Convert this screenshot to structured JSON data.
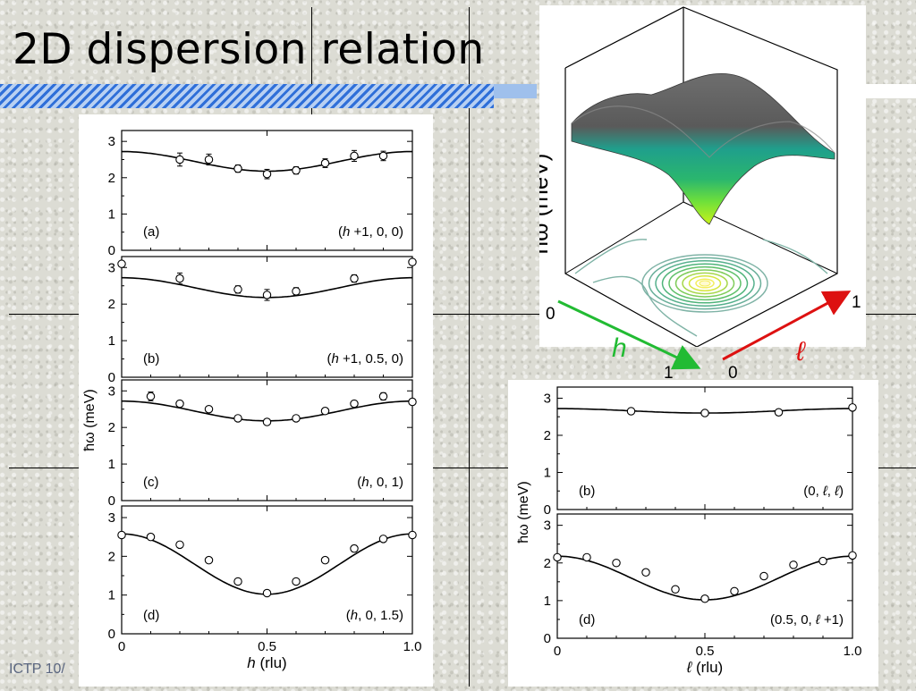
{
  "slide": {
    "title": "2D dispersion relation",
    "footer": "ICTP 10/"
  },
  "colors": {
    "title_bar": "#9fc0ec",
    "title_bar_stripe": "#2f6fd8",
    "h_arrow": "#22bb33",
    "l_arrow": "#dd1111",
    "fit_line": "#000000"
  },
  "surface": {
    "zlabel": "ħω (meV)",
    "h_label": "h",
    "l_label": "ℓ",
    "h_start": "0",
    "h_end": "1",
    "l_start": "0",
    "l_end": "1"
  },
  "chart_data": [
    {
      "type": "scatter",
      "panel": "(a)",
      "annotation": "(h +1, 0, 0)",
      "xlabel": "h (rlu)",
      "ylabel": "ħω  (meV)",
      "xlim": [
        0,
        1
      ],
      "ylim": [
        0,
        3.3
      ],
      "x_ticks": [
        "0",
        "0.5",
        "1.0"
      ],
      "y_ticks": [
        "0",
        "1",
        "2",
        "3"
      ],
      "fit": {
        "mean": 2.45,
        "amp": 0.27
      },
      "points": [
        {
          "x": 0.2,
          "y": 2.5,
          "err": 0.18
        },
        {
          "x": 0.3,
          "y": 2.5,
          "err": 0.15
        },
        {
          "x": 0.4,
          "y": 2.25,
          "err": 0.1
        },
        {
          "x": 0.5,
          "y": 2.1,
          "err": 0.13
        },
        {
          "x": 0.6,
          "y": 2.2,
          "err": 0.1
        },
        {
          "x": 0.7,
          "y": 2.4,
          "err": 0.12
        },
        {
          "x": 0.8,
          "y": 2.6,
          "err": 0.15
        },
        {
          "x": 0.9,
          "y": 2.6,
          "err": 0.13
        }
      ]
    },
    {
      "type": "scatter",
      "panel": "(b)",
      "annotation": "(h +1, 0.5, 0)",
      "xlabel": "h (rlu)",
      "ylabel": "ħω  (meV)",
      "xlim": [
        0,
        1
      ],
      "ylim": [
        0,
        3.3
      ],
      "x_ticks": [
        "0",
        "0.5",
        "1.0"
      ],
      "y_ticks": [
        "0",
        "1",
        "2",
        "3"
      ],
      "fit": {
        "mean": 2.45,
        "amp": 0.27
      },
      "points": [
        {
          "x": 0.0,
          "y": 3.1,
          "err": 0.0
        },
        {
          "x": 0.2,
          "y": 2.7,
          "err": 0.15
        },
        {
          "x": 0.4,
          "y": 2.4,
          "err": 0.1
        },
        {
          "x": 0.5,
          "y": 2.25,
          "err": 0.15
        },
        {
          "x": 0.6,
          "y": 2.35,
          "err": 0.1
        },
        {
          "x": 0.8,
          "y": 2.7,
          "err": 0.1
        },
        {
          "x": 1.0,
          "y": 3.15,
          "err": 0.0
        }
      ]
    },
    {
      "type": "scatter",
      "panel": "(c)",
      "annotation": "(h,  0, 1)",
      "xlabel": "h (rlu)",
      "ylabel": "ħω  (meV)",
      "xlim": [
        0,
        1
      ],
      "ylim": [
        0,
        3.3
      ],
      "x_ticks": [
        "0",
        "0.5",
        "1.0"
      ],
      "y_ticks": [
        "0",
        "1",
        "2",
        "3"
      ],
      "fit": {
        "mean": 2.45,
        "amp": 0.27
      },
      "points": [
        {
          "x": 0.1,
          "y": 2.85,
          "err": 0.12
        },
        {
          "x": 0.2,
          "y": 2.65,
          "err": 0.08
        },
        {
          "x": 0.3,
          "y": 2.5,
          "err": 0.06
        },
        {
          "x": 0.4,
          "y": 2.25,
          "err": 0.06
        },
        {
          "x": 0.5,
          "y": 2.15,
          "err": 0.06
        },
        {
          "x": 0.6,
          "y": 2.25,
          "err": 0.06
        },
        {
          "x": 0.7,
          "y": 2.45,
          "err": 0.06
        },
        {
          "x": 0.8,
          "y": 2.65,
          "err": 0.08
        },
        {
          "x": 0.9,
          "y": 2.85,
          "err": 0.1
        },
        {
          "x": 1.0,
          "y": 2.7,
          "err": 0.08
        }
      ]
    },
    {
      "type": "scatter",
      "panel": "(d)",
      "annotation": "(h,  0, 1.5)",
      "xlabel": "h (rlu)",
      "ylabel": "ħω  (meV)",
      "xlim": [
        0,
        1
      ],
      "ylim": [
        0,
        3.3
      ],
      "x_ticks": [
        "0",
        "0.5",
        "1.0"
      ],
      "y_ticks": [
        "0",
        "1",
        "2",
        "3"
      ],
      "fit": {
        "mean": 1.8,
        "amp": 0.78
      },
      "points": [
        {
          "x": 0.0,
          "y": 2.55,
          "err": 0.05
        },
        {
          "x": 0.1,
          "y": 2.5,
          "err": 0.05
        },
        {
          "x": 0.2,
          "y": 2.3,
          "err": 0.06
        },
        {
          "x": 0.3,
          "y": 1.9,
          "err": 0.05
        },
        {
          "x": 0.4,
          "y": 1.35,
          "err": 0.05
        },
        {
          "x": 0.5,
          "y": 1.05,
          "err": 0.05
        },
        {
          "x": 0.6,
          "y": 1.35,
          "err": 0.05
        },
        {
          "x": 0.7,
          "y": 1.9,
          "err": 0.06
        },
        {
          "x": 0.8,
          "y": 2.2,
          "err": 0.08
        },
        {
          "x": 0.9,
          "y": 2.45,
          "err": 0.06
        },
        {
          "x": 1.0,
          "y": 2.55,
          "err": 0.05
        }
      ]
    },
    {
      "type": "scatter",
      "panel": "(b)",
      "annotation": "(0, ℓ, ℓ)",
      "xlabel": "ℓ (rlu)",
      "ylabel": "ħω (meV)",
      "xlim": [
        0,
        1
      ],
      "ylim": [
        0,
        3.3
      ],
      "x_ticks": [
        "0",
        "0.5",
        "1.0"
      ],
      "y_ticks": [
        "0",
        "1",
        "2",
        "3"
      ],
      "fit": {
        "mean": 2.66,
        "amp": 0.06
      },
      "points": [
        {
          "x": 0.25,
          "y": 2.65,
          "err": 0.05
        },
        {
          "x": 0.5,
          "y": 2.6,
          "err": 0.05
        },
        {
          "x": 0.75,
          "y": 2.62,
          "err": 0.05
        },
        {
          "x": 1.0,
          "y": 2.75,
          "err": 0.05
        }
      ]
    },
    {
      "type": "scatter",
      "panel": "(d)",
      "annotation": "(0.5, 0, ℓ +1)",
      "xlabel": "ℓ (rlu)",
      "ylabel": "ħω (meV)",
      "xlim": [
        0,
        1
      ],
      "ylim": [
        0,
        3.3
      ],
      "x_ticks": [
        "0",
        "0.5",
        "1.0"
      ],
      "y_ticks": [
        "0",
        "1",
        "2",
        "3"
      ],
      "fit": {
        "mean": 1.6,
        "amp": 0.58
      },
      "points": [
        {
          "x": 0.0,
          "y": 2.15,
          "err": 0.05
        },
        {
          "x": 0.1,
          "y": 2.15,
          "err": 0.05
        },
        {
          "x": 0.2,
          "y": 2.0,
          "err": 0.05
        },
        {
          "x": 0.3,
          "y": 1.75,
          "err": 0.05
        },
        {
          "x": 0.4,
          "y": 1.3,
          "err": 0.05
        },
        {
          "x": 0.5,
          "y": 1.05,
          "err": 0.05
        },
        {
          "x": 0.6,
          "y": 1.25,
          "err": 0.05
        },
        {
          "x": 0.7,
          "y": 1.65,
          "err": 0.05
        },
        {
          "x": 0.8,
          "y": 1.95,
          "err": 0.05
        },
        {
          "x": 0.9,
          "y": 2.05,
          "err": 0.05
        },
        {
          "x": 1.0,
          "y": 2.2,
          "err": 0.05
        }
      ]
    }
  ]
}
